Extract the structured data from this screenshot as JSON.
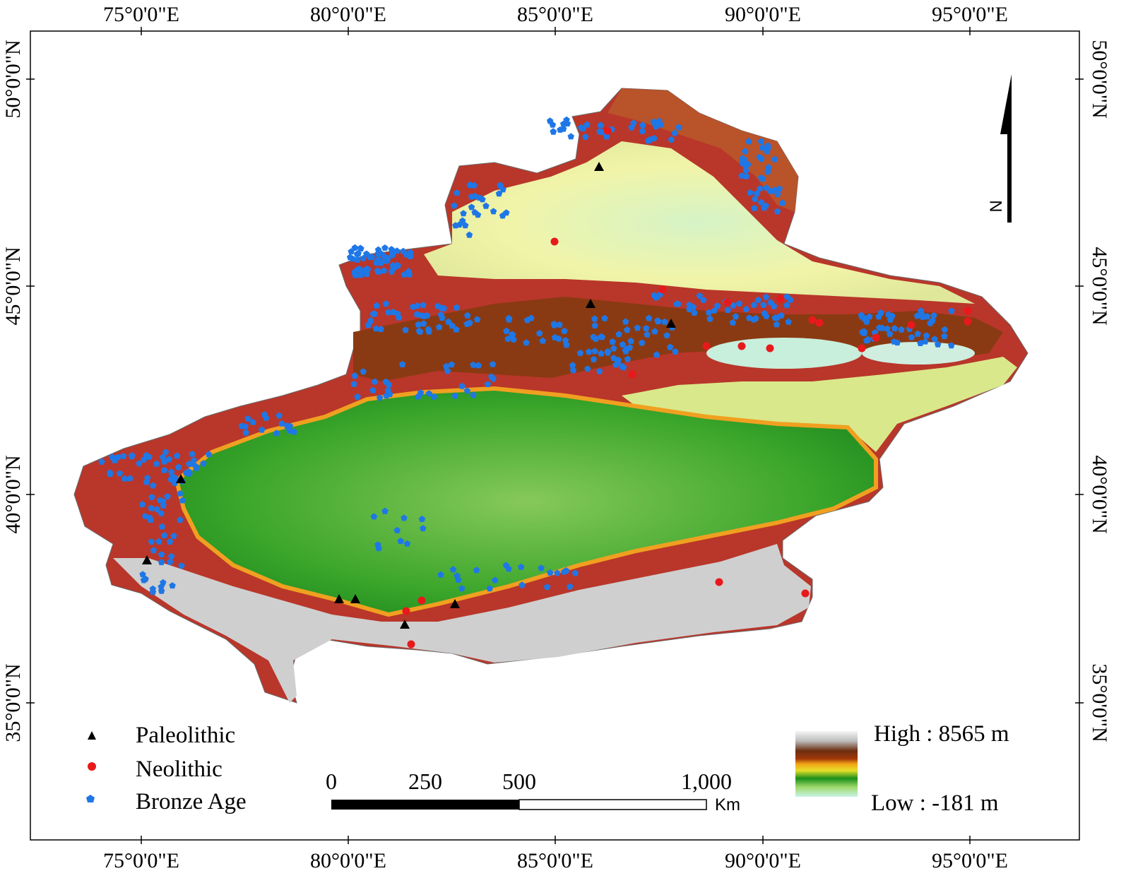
{
  "axes": {
    "top_labels": [
      "75°0'0\"E",
      "80°0'0\"E",
      "85°0'0\"E",
      "90°0'0\"E",
      "95°0'0\"E"
    ],
    "bottom_labels": [
      "75°0'0\"E",
      "80°0'0\"E",
      "85°0'0\"E",
      "90°0'0\"E",
      "95°0'0\"E"
    ],
    "left_labels": [
      "50°0'0\"N",
      "45°0'0\"N",
      "40°0'0\"N",
      "35°0'0\"N"
    ],
    "right_labels": [
      "50°0'0\"N",
      "45°0'0\"N",
      "40°0'0\"N",
      "35°0'0\"N"
    ]
  },
  "north_arrow": {
    "label": "N"
  },
  "legend": {
    "items": [
      {
        "label": "Paleolithic",
        "symbol": "triangle",
        "color": "#000000"
      },
      {
        "label": "Neolithic",
        "symbol": "circle",
        "color": "#e8191b"
      },
      {
        "label": "Bronze Age",
        "symbol": "pentagon",
        "color": "#1f77e6"
      }
    ]
  },
  "scale_bar": {
    "ticks": [
      "0",
      "250",
      "500",
      "1,000"
    ],
    "unit": "Km"
  },
  "elevation": {
    "high_label": "High : 8565 m",
    "low_label": "Low : -181 m"
  },
  "colors": {
    "paleolithic": "#000000",
    "neolithic": "#e8191b",
    "bronze": "#1f77e6"
  }
}
